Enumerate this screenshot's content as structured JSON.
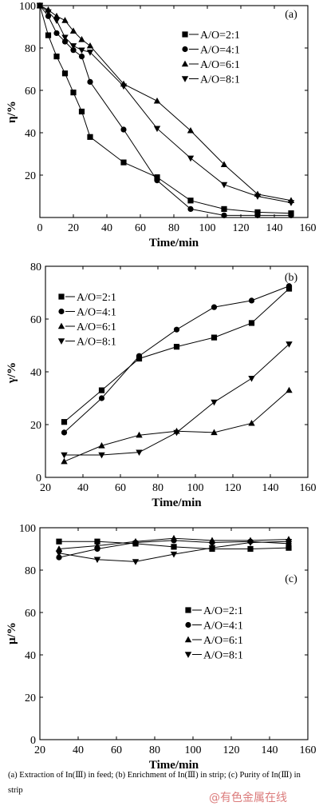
{
  "chart_data": [
    {
      "type": "line",
      "panel_label": "(a)",
      "xlabel": "Time/min",
      "ylabel": "η/%",
      "xlim": [
        0,
        160
      ],
      "ylim": [
        0,
        100
      ],
      "xticks": [
        0,
        20,
        40,
        60,
        80,
        100,
        120,
        140,
        160
      ],
      "yticks": [
        20,
        40,
        60,
        80,
        100
      ],
      "legend_position": "upper-right",
      "series": [
        {
          "name": "A/O=2:1",
          "marker": "square",
          "x": [
            0,
            5,
            10,
            15,
            20,
            25,
            30,
            50,
            70,
            90,
            110,
            130,
            150
          ],
          "y": [
            100,
            86,
            76,
            68,
            59,
            50,
            38,
            26,
            19,
            8,
            4,
            2.5,
            2
          ]
        },
        {
          "name": "A/O=4:1",
          "marker": "circle",
          "x": [
            0,
            5,
            10,
            15,
            20,
            25,
            30,
            50,
            70,
            90,
            110,
            130,
            150
          ],
          "y": [
            100,
            95,
            87,
            83,
            79,
            76,
            64,
            41.5,
            17.5,
            4,
            1,
            1,
            1
          ]
        },
        {
          "name": "A/O=6:1",
          "marker": "triangle-up",
          "x": [
            0,
            5,
            10,
            15,
            20,
            25,
            30,
            50,
            70,
            90,
            110,
            130,
            150
          ],
          "y": [
            100,
            98,
            95,
            93,
            88,
            84,
            81,
            63,
            55,
            41,
            25,
            11,
            8
          ]
        },
        {
          "name": "A/O=8:1",
          "marker": "triangle-down",
          "x": [
            0,
            5,
            10,
            15,
            20,
            25,
            30,
            50,
            70,
            90,
            110,
            130,
            150
          ],
          "y": [
            100,
            97,
            93,
            85,
            81,
            79,
            78,
            62,
            42,
            28,
            15.5,
            10,
            7
          ]
        }
      ]
    },
    {
      "type": "line",
      "panel_label": "(b)",
      "xlabel": "Time/min",
      "ylabel": "γ/%",
      "xlim": [
        20,
        160
      ],
      "ylim": [
        0,
        80
      ],
      "xticks": [
        20,
        40,
        60,
        80,
        100,
        120,
        140,
        160
      ],
      "yticks": [
        0,
        20,
        40,
        60,
        80
      ],
      "legend_position": "upper-left",
      "series": [
        {
          "name": "A/O=2:1",
          "marker": "square",
          "x": [
            30,
            50,
            70,
            90,
            110,
            130,
            150
          ],
          "y": [
            21,
            33,
            45,
            49.5,
            53,
            58.5,
            71.5
          ]
        },
        {
          "name": "A/O=4:1",
          "marker": "circle",
          "x": [
            30,
            50,
            70,
            90,
            110,
            130,
            150
          ],
          "y": [
            17,
            30,
            46,
            56,
            64.5,
            67,
            72.5
          ]
        },
        {
          "name": "A/O=6:1",
          "marker": "triangle-up",
          "x": [
            30,
            50,
            70,
            90,
            110,
            130,
            150
          ],
          "y": [
            6,
            12,
            16,
            17.5,
            17,
            20.5,
            33
          ]
        },
        {
          "name": "A/O=8:1",
          "marker": "triangle-down",
          "x": [
            30,
            50,
            70,
            90,
            110,
            130,
            150
          ],
          "y": [
            8.5,
            8.5,
            9.5,
            17,
            28.5,
            37.5,
            50.5
          ]
        }
      ]
    },
    {
      "type": "line",
      "panel_label": "(c)",
      "xlabel": "Time/min",
      "ylabel": "μ/%",
      "xlim": [
        20,
        160
      ],
      "ylim": [
        0,
        100
      ],
      "xticks": [
        20,
        40,
        60,
        80,
        100,
        120,
        140,
        160
      ],
      "yticks": [
        0,
        20,
        40,
        60,
        80,
        100
      ],
      "legend_position": "center-right",
      "series": [
        {
          "name": "A/O=2:1",
          "marker": "square",
          "x": [
            30,
            50,
            70,
            90,
            110,
            130,
            150
          ],
          "y": [
            93.5,
            93.5,
            92.5,
            91,
            90,
            90,
            90.5
          ]
        },
        {
          "name": "A/O=4:1",
          "marker": "circle",
          "x": [
            30,
            50,
            70,
            90,
            110,
            130,
            150
          ],
          "y": [
            86,
            90,
            93,
            94,
            93,
            93.5,
            92.5
          ]
        },
        {
          "name": "A/O=6:1",
          "marker": "triangle-up",
          "x": [
            30,
            50,
            70,
            90,
            110,
            130,
            150
          ],
          "y": [
            90,
            91.5,
            93.5,
            95,
            94,
            94,
            94.5
          ]
        },
        {
          "name": "A/O=8:1",
          "marker": "triangle-down",
          "x": [
            30,
            50,
            70,
            90,
            110,
            130,
            150
          ],
          "y": [
            88,
            85,
            84,
            87.5,
            90.5,
            93,
            93.5
          ]
        }
      ]
    }
  ],
  "caption": "(a) Extraction of In(Ⅲ) in feed; (b) Enrichment of In(Ⅲ) in strip; (c) Purity of In(Ⅲ) in strip",
  "watermark": "@有色金属在线"
}
